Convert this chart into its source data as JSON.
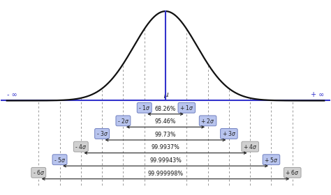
{
  "bg_color": "#ffffff",
  "curve_color": "#111111",
  "line_color": "#3333cc",
  "box_fill_blue": "#b8c4ee",
  "box_fill_gray": "#d0d0d0",
  "box_edge_blue": "#7080c0",
  "box_edge_gray": "#a0a0a0",
  "arrow_color": "#222222",
  "sigma_levels": [
    1,
    2,
    3,
    4,
    5,
    6
  ],
  "percentages": [
    "68.26%",
    "95.46%",
    "99.73%",
    "99.9937%",
    "99.99943%",
    "99.999998%"
  ],
  "sigma_box_colors": [
    "blue",
    "blue",
    "blue",
    "gray",
    "blue",
    "gray"
  ],
  "xlim": [
    -7.8,
    7.8
  ],
  "mu_label": "μ",
  "inf_left": "- ∞",
  "inf_right": "+ ∞",
  "curve_sigma": 1.5
}
